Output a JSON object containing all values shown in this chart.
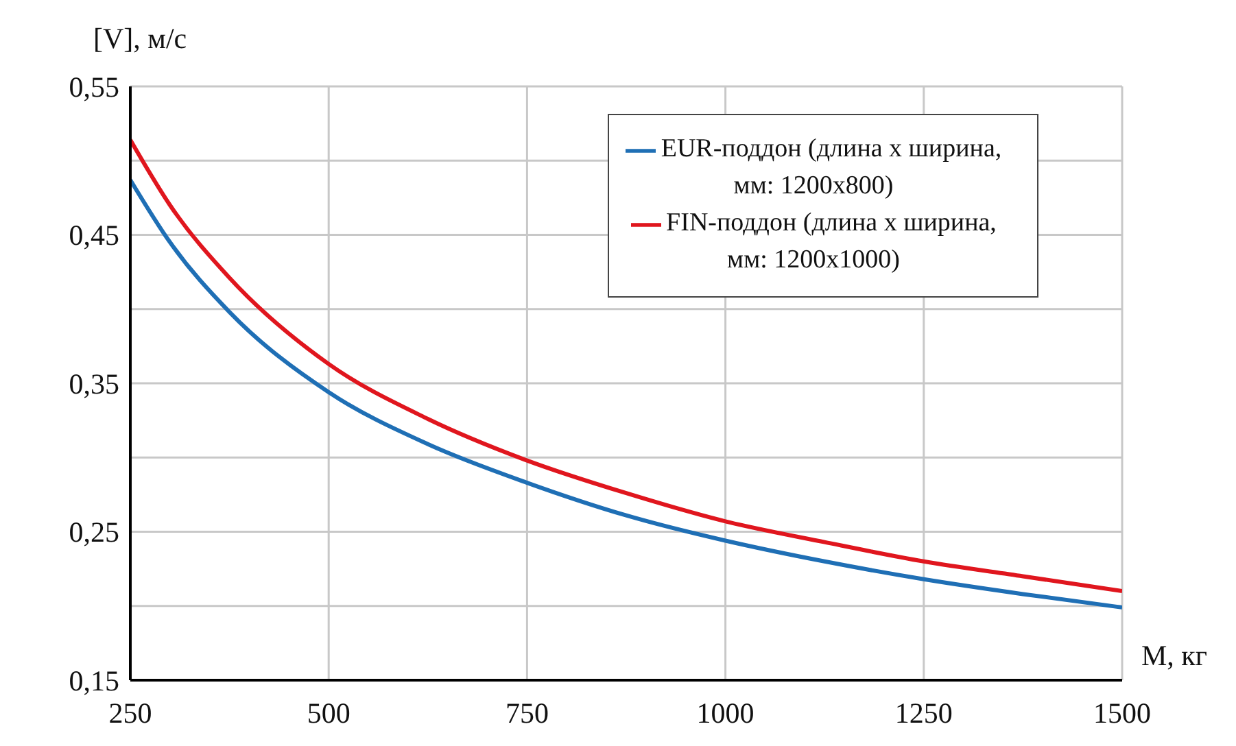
{
  "chart_data": {
    "type": "line",
    "xlabel": "M, кг",
    "ylabel": "[V], м/с",
    "x": [
      250,
      300,
      375,
      500,
      625,
      750,
      875,
      1000,
      1125,
      1250,
      1375,
      1500
    ],
    "series": [
      {
        "name": "EUR-поддон (длина х ширина, мм: 1200х800)",
        "color": "#1f6fb5",
        "values": [
          0.487,
          0.445,
          0.398,
          0.344,
          0.309,
          0.283,
          0.261,
          0.244,
          0.23,
          0.218,
          0.208,
          0.199
        ]
      },
      {
        "name": "FIN-поддон (длина х ширина, мм: 1200х1000)",
        "color": "#e0161e",
        "values": [
          0.514,
          0.47,
          0.421,
          0.363,
          0.326,
          0.298,
          0.276,
          0.257,
          0.243,
          0.23,
          0.22,
          0.21
        ]
      }
    ],
    "xlim": [
      250,
      1500
    ],
    "xticks": [
      250,
      500,
      750,
      1000,
      1250,
      1500
    ],
    "ylim": [
      0.15,
      0.55
    ],
    "yticks": [
      {
        "value": 0.15,
        "label": "0,15"
      },
      {
        "value": 0.2,
        "label": null
      },
      {
        "value": 0.25,
        "label": "0,25"
      },
      {
        "value": 0.3,
        "label": null
      },
      {
        "value": 0.35,
        "label": "0,35"
      },
      {
        "value": 0.4,
        "label": null
      },
      {
        "value": 0.45,
        "label": "0,45"
      },
      {
        "value": 0.5,
        "label": null
      },
      {
        "value": 0.55,
        "label": "0,55"
      }
    ],
    "grid": true,
    "legend": "top right",
    "marker": "none",
    "line_style": "solid"
  }
}
